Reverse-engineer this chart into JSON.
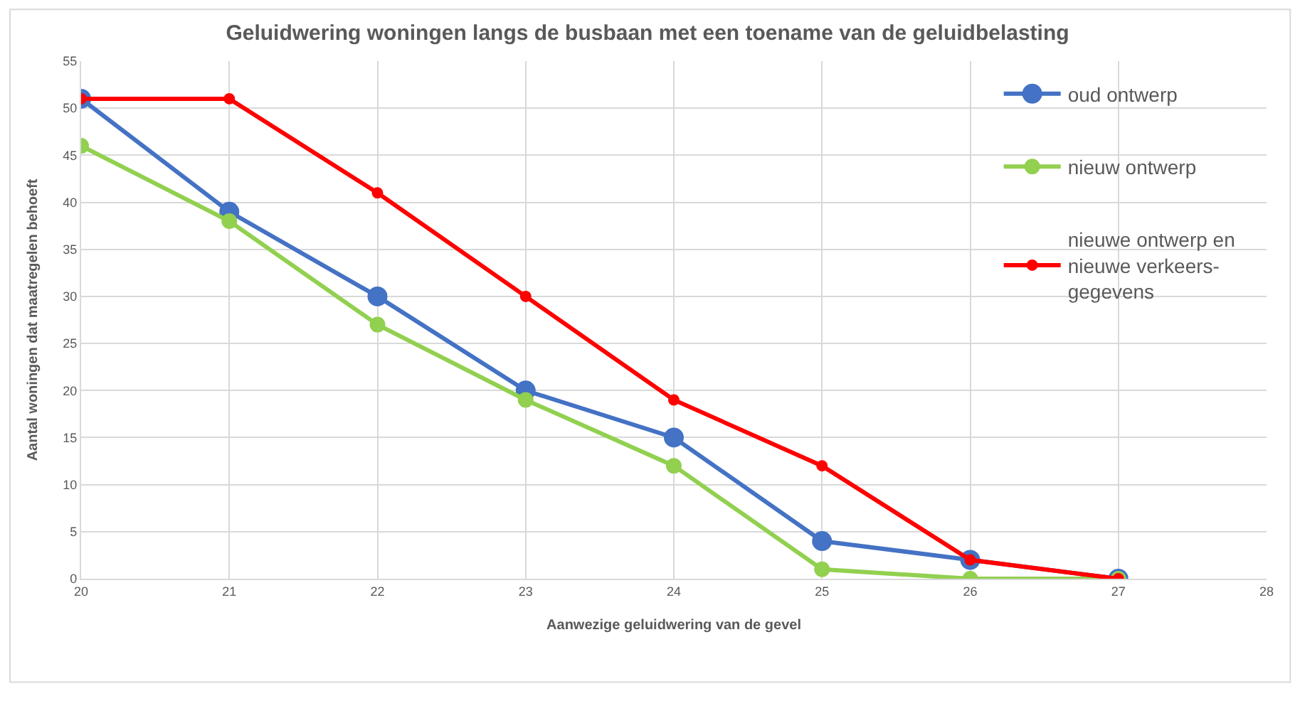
{
  "chart_data": {
    "type": "line",
    "title": "Geluidwering woningen langs de busbaan met een toename van de geluidbelasting",
    "xlabel": "Aanwezige geluidwering van de gevel",
    "ylabel": "Aantal woningen dat maatregelen behoeft",
    "x": [
      20,
      21,
      22,
      23,
      24,
      25,
      26,
      27
    ],
    "series": [
      {
        "name": "oud ontwerp",
        "color": "#4472c4",
        "values": [
          51,
          39,
          30,
          20,
          15,
          4,
          2,
          0
        ]
      },
      {
        "name": "nieuw ontwerp",
        "color": "#92d050",
        "values": [
          46,
          38,
          27,
          19,
          12,
          1,
          0,
          0
        ]
      },
      {
        "name": "nieuwe ontwerp en\nnieuwe verkeers-\ngegevens",
        "color": "#ff0000",
        "values": [
          51,
          51,
          41,
          30,
          19,
          12,
          2,
          0
        ]
      }
    ],
    "xlim": [
      20,
      28
    ],
    "xticks": [
      20,
      21,
      22,
      23,
      24,
      25,
      26,
      27,
      28
    ],
    "ylim": [
      0,
      55
    ],
    "yticks": [
      0,
      5,
      10,
      15,
      20,
      25,
      30,
      35,
      40,
      45,
      50,
      55
    ],
    "grid": true,
    "legend": "top right",
    "marker": "circle",
    "line_style": "solid"
  }
}
